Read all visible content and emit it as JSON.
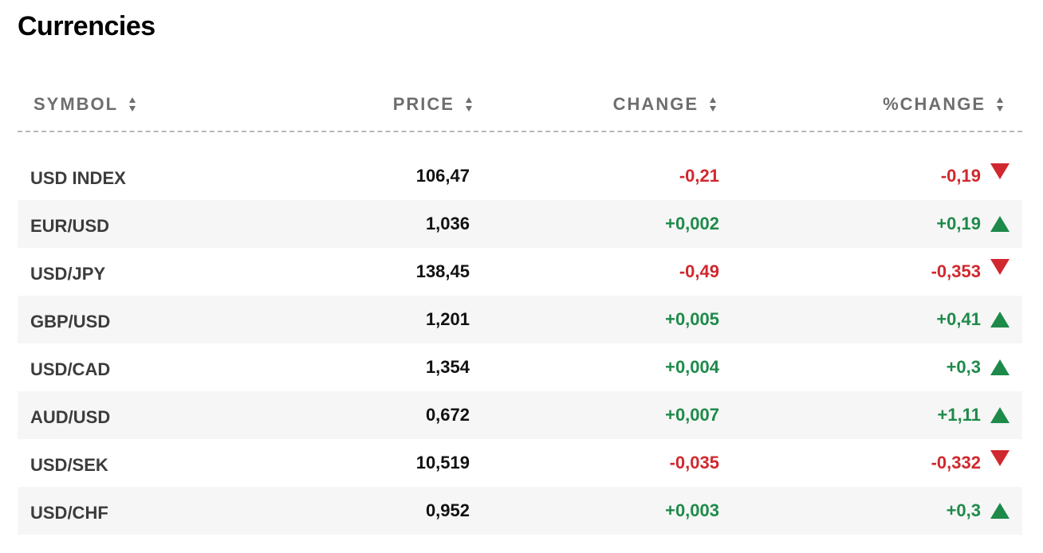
{
  "title": "Currencies",
  "columns": {
    "symbol": "SYMBOL",
    "price": "PRICE",
    "change": "CHANGE",
    "pct_change": "%CHANGE"
  },
  "colors": {
    "negative": "#d0282e",
    "positive": "#1e8a4a",
    "header": "#6e6e6e",
    "row_alt": "#f6f6f6"
  },
  "rows": [
    {
      "symbol": "USD INDEX",
      "price": "106,47",
      "change": "-0,21",
      "pct_change": "-0,19",
      "direction": "down"
    },
    {
      "symbol": "EUR/USD",
      "price": "1,036",
      "change": "+0,002",
      "pct_change": "+0,19",
      "direction": "up"
    },
    {
      "symbol": "USD/JPY",
      "price": "138,45",
      "change": "-0,49",
      "pct_change": "-0,353",
      "direction": "down"
    },
    {
      "symbol": "GBP/USD",
      "price": "1,201",
      "change": "+0,005",
      "pct_change": "+0,41",
      "direction": "up"
    },
    {
      "symbol": "USD/CAD",
      "price": "1,354",
      "change": "+0,004",
      "pct_change": "+0,3",
      "direction": "up"
    },
    {
      "symbol": "AUD/USD",
      "price": "0,672",
      "change": "+0,007",
      "pct_change": "+1,11",
      "direction": "up"
    },
    {
      "symbol": "USD/SEK",
      "price": "10,519",
      "change": "-0,035",
      "pct_change": "-0,332",
      "direction": "down"
    },
    {
      "symbol": "USD/CHF",
      "price": "0,952",
      "change": "+0,003",
      "pct_change": "+0,3",
      "direction": "up"
    }
  ]
}
